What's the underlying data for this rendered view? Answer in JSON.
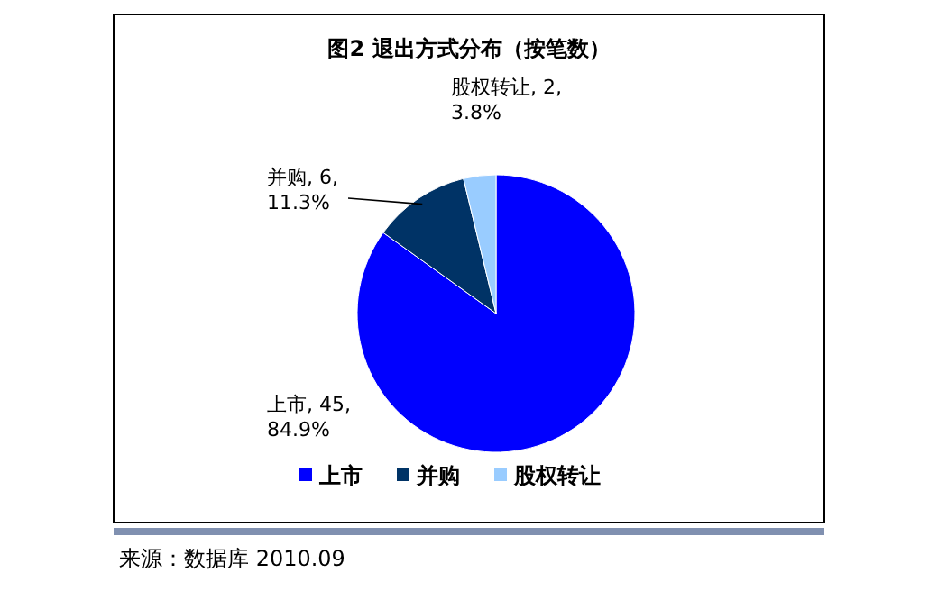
{
  "chart_data": {
    "type": "pie",
    "title": "图2  退出方式分布（按笔数）",
    "categories": [
      "上市",
      "并购",
      "股权转让"
    ],
    "values": [
      45,
      6,
      2
    ],
    "value_labels": [
      "上市, 45, 84.9%",
      "并购, 6, 11.3%",
      "股权转让, 2, 3.8%"
    ],
    "colors": [
      "#0000ff",
      "#003366",
      "#99ccff"
    ],
    "legend": "bottom",
    "annotations": [
      "来源：数据库 2010.09"
    ]
  }
}
